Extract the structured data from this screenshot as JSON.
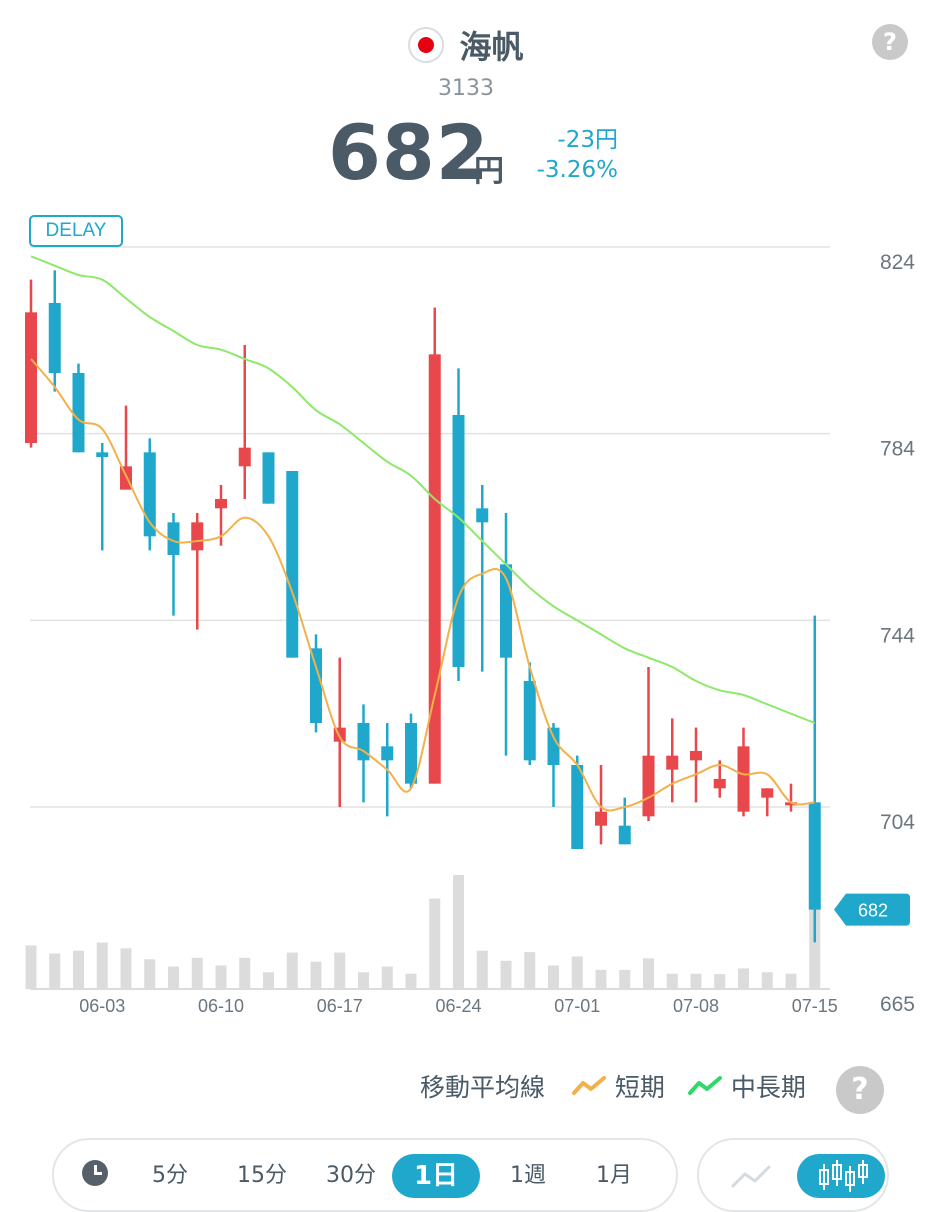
{
  "header": {
    "stock_name": "海帆",
    "stock_code": "3133",
    "price": "682",
    "price_unit": "円",
    "change": "-23円",
    "change_percent": "-3.26%",
    "delay_badge": "DELAY"
  },
  "colors": {
    "up": "#e8474b",
    "down": "#1fa8cc",
    "ma_short": "#f2b14a",
    "ma_long": "#8ee86a",
    "volume": "#dcdcdc",
    "price_tag": "#1fa8cc"
  },
  "chart_data": {
    "type": "candlestick",
    "y_ticks": [
      824,
      784,
      744,
      704,
      665
    ],
    "ylim": [
      665,
      827
    ],
    "x_tick_labels": [
      "06-03",
      "06-10",
      "06-17",
      "06-24",
      "07-01",
      "07-08",
      "07-15"
    ],
    "x_tick_index": [
      3,
      8,
      13,
      18,
      23,
      28,
      33
    ],
    "current_price_label": "682",
    "candles": [
      {
        "o": 782,
        "h": 817,
        "l": 781,
        "c": 810
      },
      {
        "o": 812,
        "h": 819,
        "l": 793,
        "c": 797
      },
      {
        "o": 797,
        "h": 799,
        "l": 780,
        "c": 780
      },
      {
        "o": 780,
        "h": 782,
        "l": 759,
        "c": 779
      },
      {
        "o": 772,
        "h": 790,
        "l": 773,
        "c": 777
      },
      {
        "o": 780,
        "h": 783,
        "l": 759,
        "c": 762
      },
      {
        "o": 765,
        "h": 767,
        "l": 745,
        "c": 758
      },
      {
        "o": 759,
        "h": 767,
        "l": 742,
        "c": 765
      },
      {
        "o": 768,
        "h": 773,
        "l": 760,
        "c": 770
      },
      {
        "o": 777,
        "h": 803,
        "l": 770,
        "c": 781
      },
      {
        "o": 780,
        "h": 780,
        "l": 769,
        "c": 769
      },
      {
        "o": 776,
        "h": 776,
        "l": 736,
        "c": 736
      },
      {
        "o": 738,
        "h": 741,
        "l": 720,
        "c": 722
      },
      {
        "o": 718,
        "h": 736,
        "l": 704,
        "c": 721
      },
      {
        "o": 722,
        "h": 726,
        "l": 705,
        "c": 714
      },
      {
        "o": 717,
        "h": 722,
        "l": 702,
        "c": 714
      },
      {
        "o": 722,
        "h": 724,
        "l": 708,
        "c": 709
      },
      {
        "o": 709,
        "h": 811,
        "l": 709,
        "c": 801
      },
      {
        "o": 788,
        "h": 798,
        "l": 731,
        "c": 734
      },
      {
        "o": 768,
        "h": 773,
        "l": 733,
        "c": 765
      },
      {
        "o": 756,
        "h": 767,
        "l": 715,
        "c": 736
      },
      {
        "o": 731,
        "h": 735,
        "l": 713,
        "c": 714
      },
      {
        "o": 721,
        "h": 722,
        "l": 704,
        "c": 713
      },
      {
        "o": 713,
        "h": 715,
        "l": 695,
        "c": 695
      },
      {
        "o": 700,
        "h": 713,
        "l": 696,
        "c": 703
      },
      {
        "o": 700,
        "h": 706,
        "l": 696,
        "c": 696
      },
      {
        "o": 702,
        "h": 734,
        "l": 701,
        "c": 715
      },
      {
        "o": 712,
        "h": 723,
        "l": 705,
        "c": 715
      },
      {
        "o": 714,
        "h": 721,
        "l": 705,
        "c": 716
      },
      {
        "o": 708,
        "h": 714,
        "l": 706,
        "c": 710
      },
      {
        "o": 703,
        "h": 721,
        "l": 702,
        "c": 717
      },
      {
        "o": 706,
        "h": 708,
        "l": 702,
        "c": 708
      },
      {
        "o": 705,
        "h": 709,
        "l": 703,
        "c": 705
      },
      {
        "o": 705,
        "h": 745,
        "l": 675,
        "c": 682
      }
    ],
    "volume": [
      9.1,
      7.4,
      8.0,
      9.7,
      8.5,
      6.2,
      4.7,
      6.5,
      4.9,
      6.5,
      3.5,
      7.6,
      5.7,
      7.6,
      3.5,
      4.7,
      3.2,
      18.9,
      23.8,
      8.0,
      5.9,
      7.7,
      4.9,
      6.8,
      4.0,
      4.0,
      6.4,
      3.2,
      3.2,
      3.1,
      4.3,
      3.5,
      3.2,
      19.6
    ],
    "ma_short": [
      800,
      794,
      787,
      785,
      775,
      765,
      761,
      761,
      762,
      766,
      762,
      750,
      734,
      719,
      716,
      712,
      708,
      728,
      749,
      754,
      753,
      734,
      719,
      713,
      704,
      704,
      706,
      709,
      711,
      713,
      711,
      711,
      705,
      705
    ],
    "ma_long": [
      822,
      820,
      818,
      817,
      813,
      809,
      806,
      803,
      802,
      800,
      798,
      794,
      789,
      786,
      782,
      778,
      775,
      770,
      766,
      761,
      756,
      751,
      747,
      744,
      741,
      738,
      736,
      734,
      731,
      729,
      728,
      726,
      724,
      722
    ]
  },
  "legend": {
    "title": "移動平均線",
    "short_label": "短期",
    "long_label": "中長期"
  },
  "periods": [
    {
      "label": "5分",
      "active": false
    },
    {
      "label": "15分",
      "active": false
    },
    {
      "label": "30分",
      "active": false
    },
    {
      "label": "1日",
      "active": true
    },
    {
      "label": "1週",
      "active": false
    },
    {
      "label": "1月",
      "active": false
    }
  ],
  "chart_types": [
    {
      "icon": "line-chart-icon",
      "active": false
    },
    {
      "icon": "candlestick-icon",
      "active": true
    }
  ]
}
